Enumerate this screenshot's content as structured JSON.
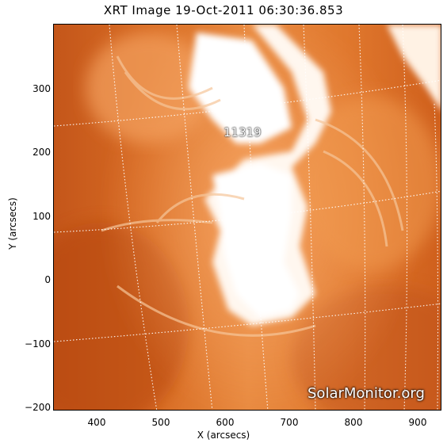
{
  "title": "XRT Image 19-Oct-2011 06:30:36.853",
  "xlabel": "X (arcsecs)",
  "ylabel": "Y (arcsecs)",
  "y_ticks": [
    "300",
    "200",
    "100",
    "0",
    "−100",
    "−200"
  ],
  "x_ticks": [
    "400",
    "500",
    "600",
    "700",
    "800",
    "900"
  ],
  "region_label": "11319",
  "watermark": "SolarMonitor.org",
  "colors": {
    "dark": "#b8480f",
    "mid": "#e07a2a",
    "bright": "#ffffff",
    "grid": "#ffffff"
  }
}
